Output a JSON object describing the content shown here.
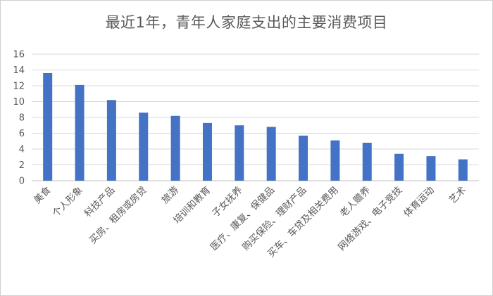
{
  "chart_data": {
    "type": "bar",
    "title": "最近1年，青年人家庭支出的主要消费项目",
    "xlabel": "",
    "ylabel": "",
    "ylim": [
      0,
      16
    ],
    "yticks": [
      0,
      2,
      4,
      6,
      8,
      10,
      12,
      14,
      16
    ],
    "grid": true,
    "legend": "none",
    "bar_color": "#4472C4",
    "categories": [
      "美食",
      "个人形象",
      "科技产品",
      "买房、租房或房贷",
      "旅游",
      "培训和教育",
      "子女抚养",
      "医疗、康复、保健品",
      "购买保险、理财产品",
      "买车、车贷及相关费用",
      "老人赡养",
      "网络游戏、电子竞技",
      "体育运动",
      "艺术"
    ],
    "values": [
      13.6,
      12.1,
      10.2,
      8.6,
      8.2,
      7.3,
      7.0,
      6.8,
      5.7,
      5.1,
      4.8,
      3.4,
      3.1,
      2.7
    ]
  }
}
